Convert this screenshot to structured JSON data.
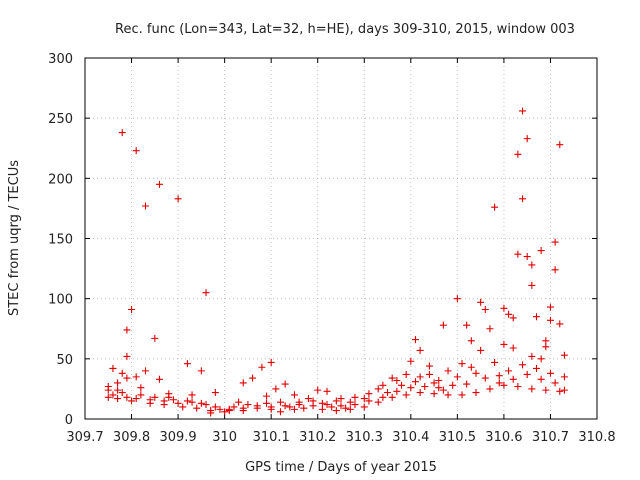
{
  "chart_data": {
    "type": "scatter",
    "title": "Rec. func (Lon=343, Lat=32, h=HE), days 309-310, 2015, window 003",
    "xlabel": "GPS time / Days of year 2015",
    "ylabel": "STEC from uqrg / TECUs",
    "xlim": [
      309.7,
      310.8
    ],
    "ylim": [
      0,
      300
    ],
    "xticks": [
      "309.7",
      "309.8",
      "309.9",
      "310",
      "310.1",
      "310.2",
      "310.3",
      "310.4",
      "310.5",
      "310.6",
      "310.7",
      "310.8"
    ],
    "yticks": [
      "0",
      "50",
      "100",
      "150",
      "200",
      "250",
      "300"
    ],
    "grid": true,
    "marker": "+",
    "color": "#e00000",
    "series": [
      {
        "name": "STEC",
        "points": [
          [
            309.78,
            238
          ],
          [
            309.81,
            223
          ],
          [
            309.86,
            195
          ],
          [
            309.83,
            177
          ],
          [
            309.9,
            183
          ],
          [
            309.96,
            105
          ],
          [
            309.8,
            91
          ],
          [
            309.79,
            74
          ],
          [
            309.85,
            67
          ],
          [
            309.79,
            52
          ],
          [
            309.76,
            42
          ],
          [
            309.78,
            38
          ],
          [
            309.83,
            40
          ],
          [
            309.86,
            33
          ],
          [
            309.92,
            46
          ],
          [
            309.95,
            40
          ],
          [
            309.79,
            34
          ],
          [
            309.81,
            35
          ],
          [
            309.77,
            30
          ],
          [
            309.75,
            27
          ],
          [
            309.98,
            22
          ],
          [
            309.93,
            20
          ],
          [
            309.88,
            21
          ],
          [
            310.04,
            30
          ],
          [
            310.08,
            43
          ],
          [
            310.1,
            47
          ],
          [
            310.06,
            34
          ],
          [
            310.13,
            29
          ],
          [
            310.11,
            25
          ],
          [
            310.15,
            20
          ],
          [
            310.2,
            24
          ],
          [
            310.22,
            23
          ],
          [
            310.3,
            17
          ],
          [
            310.34,
            28
          ],
          [
            310.37,
            32
          ],
          [
            310.41,
            66
          ],
          [
            310.42,
            57
          ],
          [
            310.4,
            48
          ],
          [
            310.44,
            44
          ],
          [
            310.47,
            78
          ],
          [
            310.5,
            100
          ],
          [
            310.52,
            78
          ],
          [
            310.53,
            65
          ],
          [
            310.55,
            97
          ],
          [
            310.56,
            91
          ],
          [
            310.57,
            75
          ],
          [
            310.58,
            176
          ],
          [
            310.6,
            92
          ],
          [
            310.61,
            87
          ],
          [
            310.62,
            84
          ],
          [
            310.63,
            137
          ],
          [
            310.63,
            220
          ],
          [
            310.64,
            256
          ],
          [
            310.64,
            183
          ],
          [
            310.65,
            233
          ],
          [
            310.65,
            135
          ],
          [
            310.66,
            128
          ],
          [
            310.66,
            111
          ],
          [
            310.67,
            85
          ],
          [
            310.68,
            140
          ],
          [
            310.69,
            65
          ],
          [
            310.7,
            93
          ],
          [
            310.7,
            82
          ],
          [
            310.71,
            147
          ],
          [
            310.71,
            124
          ],
          [
            310.72,
            228
          ],
          [
            310.72,
            79
          ],
          [
            310.73,
            53
          ],
          [
            310.69,
            60
          ],
          [
            310.68,
            50
          ],
          [
            310.66,
            52
          ],
          [
            310.62,
            59
          ],
          [
            310.6,
            62
          ],
          [
            310.58,
            47
          ],
          [
            310.55,
            57
          ],
          [
            310.53,
            43
          ],
          [
            310.51,
            46
          ],
          [
            310.48,
            40
          ],
          [
            310.46,
            32
          ],
          [
            310.44,
            37
          ],
          [
            310.42,
            35
          ],
          [
            310.39,
            37
          ],
          [
            310.36,
            34
          ],
          [
            310.33,
            25
          ],
          [
            310.31,
            21
          ],
          [
            310.28,
            18
          ],
          [
            310.25,
            17
          ],
          [
            310.24,
            15
          ],
          [
            310.18,
            17
          ],
          [
            310.16,
            14
          ],
          [
            310.12,
            14
          ],
          [
            310.09,
            13
          ],
          [
            310.05,
            12
          ],
          [
            310.02,
            10
          ],
          [
            309.99,
            8
          ],
          [
            309.96,
            12
          ],
          [
            309.92,
            15
          ],
          [
            309.89,
            16
          ],
          [
            309.85,
            18
          ],
          [
            309.82,
            20
          ],
          [
            309.78,
            22
          ],
          [
            309.76,
            20
          ],
          [
            309.75,
            18
          ],
          [
            309.77,
            17
          ],
          [
            309.8,
            15
          ],
          [
            309.84,
            13
          ],
          [
            309.87,
            12
          ],
          [
            309.91,
            10
          ],
          [
            309.94,
            9
          ],
          [
            309.97,
            7
          ],
          [
            310.01,
            8
          ],
          [
            310.04,
            7
          ],
          [
            310.07,
            9
          ],
          [
            310.1,
            8
          ],
          [
            310.14,
            10
          ],
          [
            310.17,
            9
          ],
          [
            310.21,
            8
          ],
          [
            310.24,
            7
          ],
          [
            310.27,
            8
          ],
          [
            310.3,
            10
          ],
          [
            310.33,
            14
          ],
          [
            310.36,
            18
          ],
          [
            310.39,
            20
          ],
          [
            310.42,
            22
          ],
          [
            310.45,
            21
          ],
          [
            310.48,
            20
          ],
          [
            310.51,
            20
          ],
          [
            310.54,
            22
          ],
          [
            310.57,
            25
          ],
          [
            310.6,
            28
          ],
          [
            310.63,
            27
          ],
          [
            310.66,
            25
          ],
          [
            310.69,
            24
          ],
          [
            310.72,
            23
          ],
          [
            310.73,
            24
          ],
          [
            310.71,
            30
          ],
          [
            310.68,
            33
          ],
          [
            310.65,
            37
          ],
          [
            310.62,
            33
          ],
          [
            310.59,
            30
          ],
          [
            310.56,
            34
          ],
          [
            310.52,
            29
          ],
          [
            310.49,
            28
          ],
          [
            310.46,
            26
          ],
          [
            310.43,
            27
          ],
          [
            310.4,
            26
          ],
          [
            310.37,
            23
          ],
          [
            310.34,
            18
          ],
          [
            310.31,
            15
          ],
          [
            310.28,
            12
          ],
          [
            310.25,
            11
          ],
          [
            310.22,
            12
          ],
          [
            310.19,
            11
          ],
          [
            310.16,
            12
          ],
          [
            310.13,
            11
          ],
          [
            310.1,
            10
          ],
          [
            310.07,
            11
          ],
          [
            310.04,
            9
          ],
          [
            310.01,
            7
          ],
          [
            309.98,
            10
          ],
          [
            309.95,
            13
          ],
          [
            309.93,
            14
          ],
          [
            309.9,
            13
          ],
          [
            309.87,
            15
          ],
          [
            309.84,
            16
          ],
          [
            309.81,
            17
          ],
          [
            309.79,
            18
          ],
          [
            309.77,
            24
          ],
          [
            309.82,
            26
          ],
          [
            309.88,
            18
          ],
          [
            310.03,
            14
          ],
          [
            310.09,
            19
          ],
          [
            310.19,
            15
          ],
          [
            310.27,
            14
          ],
          [
            310.35,
            22
          ],
          [
            310.38,
            28
          ],
          [
            310.45,
            30
          ],
          [
            310.5,
            35
          ],
          [
            310.54,
            38
          ],
          [
            310.61,
            40
          ],
          [
            310.64,
            45
          ],
          [
            310.67,
            42
          ],
          [
            310.7,
            38
          ],
          [
            310.73,
            35
          ],
          [
            310.59,
            36
          ],
          [
            310.47,
            24
          ],
          [
            310.41,
            31
          ],
          [
            310.26,
            9
          ],
          [
            310.23,
            10
          ],
          [
            310.21,
            13
          ],
          [
            310.12,
            6
          ],
          [
            310.15,
            8
          ],
          [
            310.0,
            6
          ],
          [
            309.97,
            5
          ],
          [
            309.75,
            24
          ]
        ]
      }
    ]
  }
}
